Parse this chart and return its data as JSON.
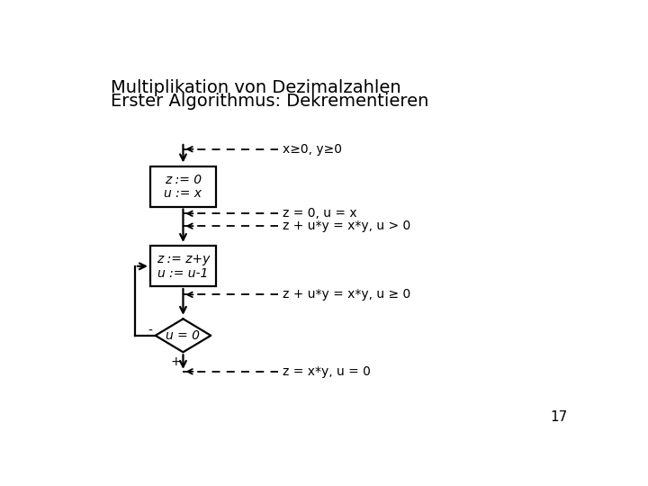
{
  "title_line1": "Multiplikation von Dezimalzahlen",
  "title_line2": "Erster Algorithmus: Dekrementieren",
  "page_number": "17",
  "bg_color": "#ffffff",
  "line_color": "#000000",
  "title_fontsize": 14,
  "label_fontsize": 10,
  "annotation_fontsize": 10,
  "box1_label1": "z := 0",
  "box1_label2": "u := x",
  "box2_label1": "z := z+y",
  "box2_label2": "u := u-1",
  "diamond_text": "u = 0",
  "minus_label": "-",
  "plus_label": "+",
  "annotation1": "x≥0, y≥0",
  "annotation2": "z = 0, u = x",
  "annotation3": "z + u*y = x*y, u > 0",
  "annotation4": "z + u*y = x*y, u ≥ 0",
  "annotation5": "z = x*y, u = 0"
}
